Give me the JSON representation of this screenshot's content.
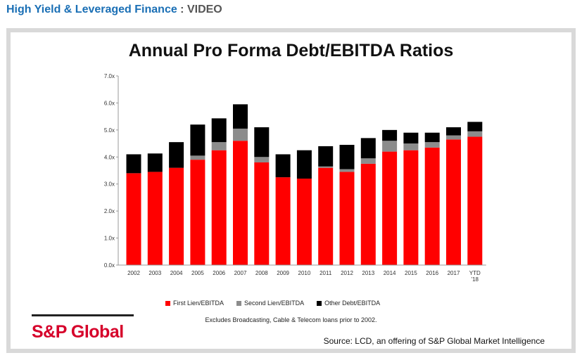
{
  "header": {
    "section": "High Yield & Leveraged Finance",
    "separator": " : ",
    "kind": "VIDEO"
  },
  "slide": {
    "title": "Annual Pro Forma Debt/EBITDA Ratios",
    "note": "Excludes Broadcasting, Cable & Telecom loans prior to 2002.",
    "brand": "S&P Global",
    "source": "Source: LCD, an offering of S&P Global Market Intelligence"
  },
  "chart_data": {
    "type": "bar",
    "stacked": true,
    "title": "Annual Pro Forma Debt/EBITDA Ratios",
    "xlabel": "",
    "ylabel": "",
    "ylim": [
      0,
      7
    ],
    "yticks": [
      "0.0x",
      "1.0x",
      "2.0x",
      "3.0x",
      "4.0x",
      "5.0x",
      "6.0x",
      "7.0x"
    ],
    "grid": false,
    "legend_position": "bottom",
    "categories": [
      "2002",
      "2003",
      "2004",
      "2005",
      "2006",
      "2007",
      "2008",
      "2009",
      "2010",
      "2011",
      "2012",
      "2013",
      "2014",
      "2015",
      "2016",
      "2017",
      "YTD '18"
    ],
    "series": [
      {
        "name": "First Lien/EBITDA",
        "color": "#ff0000",
        "values": [
          3.4,
          3.45,
          3.6,
          3.9,
          4.25,
          4.6,
          3.8,
          3.25,
          3.2,
          3.6,
          3.45,
          3.75,
          4.2,
          4.25,
          4.35,
          4.65,
          4.75
        ]
      },
      {
        "name": "Second Lien/EBITDA",
        "color": "#8c8c8c",
        "values": [
          0.0,
          0.0,
          0.0,
          0.15,
          0.3,
          0.45,
          0.2,
          0.0,
          0.0,
          0.05,
          0.1,
          0.2,
          0.4,
          0.25,
          0.2,
          0.15,
          0.2
        ]
      },
      {
        "name": "Other Debt/EBITDA",
        "color": "#000000",
        "values": [
          0.7,
          0.68,
          0.95,
          1.15,
          0.88,
          0.9,
          1.1,
          0.85,
          1.05,
          0.75,
          0.9,
          0.75,
          0.4,
          0.4,
          0.35,
          0.3,
          0.35
        ]
      }
    ]
  }
}
